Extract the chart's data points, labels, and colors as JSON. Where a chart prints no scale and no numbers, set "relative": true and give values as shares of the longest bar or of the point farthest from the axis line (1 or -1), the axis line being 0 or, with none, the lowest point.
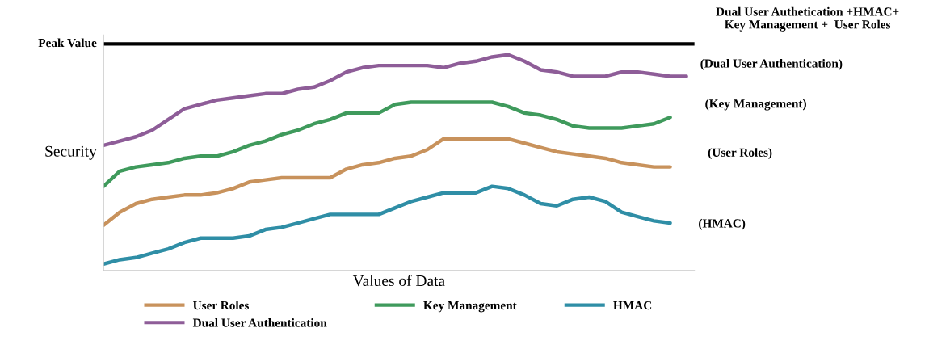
{
  "chart_data": {
    "type": "line",
    "relative": true,
    "xlabel": "Values of Data",
    "ylabel": "Security",
    "categories": [
      null,
      null,
      null,
      null,
      null,
      null,
      null,
      null,
      null,
      null,
      null,
      null,
      null,
      null,
      null,
      null,
      null,
      null,
      null,
      null,
      null,
      null,
      null,
      null,
      null,
      null,
      null,
      null,
      null,
      null,
      null,
      null,
      null,
      null,
      null,
      null,
      null
    ],
    "series": [
      {
        "name": "User Roles",
        "color": "#c8925c",
        "values": [
          0.21,
          0.27,
          0.31,
          0.33,
          0.34,
          0.35,
          0.35,
          0.36,
          0.38,
          0.41,
          0.42,
          0.43,
          0.43,
          0.43,
          0.43,
          0.47,
          0.49,
          0.5,
          0.52,
          0.53,
          0.56,
          0.61,
          0.61,
          0.61,
          0.61,
          0.61,
          0.59,
          0.57,
          0.55,
          0.54,
          0.53,
          0.52,
          0.5,
          0.49,
          0.48,
          0.48,
          null
        ]
      },
      {
        "name": "Key Management",
        "color": "#3f9a5c",
        "values": [
          0.39,
          0.46,
          0.48,
          0.49,
          0.5,
          0.52,
          0.53,
          0.53,
          0.55,
          0.58,
          0.6,
          0.63,
          0.65,
          0.68,
          0.7,
          0.73,
          0.73,
          0.73,
          0.77,
          0.78,
          0.78,
          0.78,
          0.78,
          0.78,
          0.78,
          0.76,
          0.73,
          0.72,
          0.7,
          0.67,
          0.66,
          0.66,
          0.66,
          0.67,
          0.68,
          0.71,
          null
        ]
      },
      {
        "name": "HMAC",
        "color": "#2f8ea6",
        "values": [
          0.03,
          0.05,
          0.06,
          0.08,
          0.1,
          0.13,
          0.15,
          0.15,
          0.15,
          0.16,
          0.19,
          0.2,
          0.22,
          0.24,
          0.26,
          0.26,
          0.26,
          0.26,
          0.29,
          0.32,
          0.34,
          0.36,
          0.36,
          0.36,
          0.39,
          0.38,
          0.35,
          0.31,
          0.3,
          0.33,
          0.34,
          0.32,
          0.27,
          0.25,
          0.23,
          0.22,
          null
        ]
      },
      {
        "name": "Dual User Authentication",
        "color": "#8e5d98",
        "values": [
          0.58,
          0.6,
          0.62,
          0.65,
          0.7,
          0.75,
          0.77,
          0.79,
          0.8,
          0.81,
          0.82,
          0.82,
          0.84,
          0.85,
          0.88,
          0.92,
          0.94,
          0.95,
          0.95,
          0.95,
          0.95,
          0.94,
          0.96,
          0.97,
          0.99,
          1.0,
          0.97,
          0.93,
          0.92,
          0.9,
          0.9,
          0.9,
          0.92,
          0.92,
          0.91,
          0.9,
          0.9
        ]
      }
    ],
    "ref_lines": [
      {
        "axis": "y",
        "value": 1.05,
        "label": "Peak Value",
        "color": "#000000"
      }
    ],
    "annotations": [
      "Dual User Authetication +HMAC+\nKey Management +  User Roles",
      "(Dual User Authentication)",
      "(Key Management)",
      "(User Roles)",
      "(HMAC)"
    ],
    "legend": "bottom",
    "marker": "none",
    "line_style": "solid"
  }
}
